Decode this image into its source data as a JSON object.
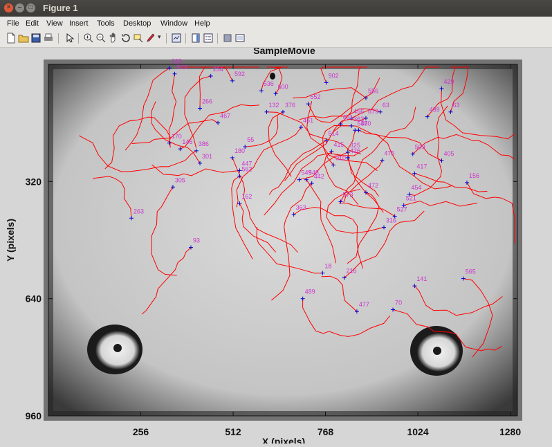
{
  "window": {
    "title": "Figure 1",
    "close_glyph": "×",
    "min_glyph": "–",
    "max_glyph": "□"
  },
  "menu": [
    "File",
    "Edit",
    "View",
    "Insert",
    "Tools",
    "Desktop",
    "Window",
    "Help"
  ],
  "toolbar_icons": [
    "new-figure-icon",
    "open-file-icon",
    "save-icon",
    "print-icon",
    "pointer-icon",
    "zoom-in-icon",
    "zoom-out-icon",
    "pan-icon",
    "rotate-3d-icon",
    "data-cursor-icon",
    "brush-icon",
    "link-plot-icon",
    "colorbar-icon",
    "legend-icon",
    "hide-plot-tools-icon",
    "show-plot-tools-icon"
  ],
  "chart_data": {
    "type": "scatter",
    "title": "SampleMovie",
    "xlabel": "X (pixels)",
    "ylabel": "Y (pixels)",
    "xlim": [
      0,
      1300
    ],
    "ylim": [
      960,
      0
    ],
    "xticks": [
      "256",
      "512",
      "768",
      "1024",
      "1280"
    ],
    "yticks": [
      "320",
      "640",
      "960"
    ],
    "track_color": "#ff0000",
    "marker_color": "#0000cc",
    "label_color": "#cc33cc",
    "detections": [
      {
        "id": "328",
        "x": 335,
        "y": 10
      },
      {
        "id": "543",
        "x": 350,
        "y": 26
      },
      {
        "id": "254",
        "x": 450,
        "y": 32
      },
      {
        "id": "592",
        "x": 510,
        "y": 45
      },
      {
        "id": "902",
        "x": 770,
        "y": 50
      },
      {
        "id": "429",
        "x": 1090,
        "y": 66
      },
      {
        "id": "536",
        "x": 590,
        "y": 72
      },
      {
        "id": "600",
        "x": 630,
        "y": 80
      },
      {
        "id": "556",
        "x": 880,
        "y": 92
      },
      {
        "id": "552",
        "x": 720,
        "y": 108
      },
      {
        "id": "266",
        "x": 420,
        "y": 120
      },
      {
        "id": "132",
        "x": 605,
        "y": 130
      },
      {
        "id": "376",
        "x": 650,
        "y": 130
      },
      {
        "id": "63",
        "x": 1115,
        "y": 130
      },
      {
        "id": "63",
        "x": 920,
        "y": 130
      },
      {
        "id": "439",
        "x": 1050,
        "y": 143
      },
      {
        "id": "456",
        "x": 840,
        "y": 147
      },
      {
        "id": "879",
        "x": 880,
        "y": 147
      },
      {
        "id": "467",
        "x": 470,
        "y": 160
      },
      {
        "id": "421",
        "x": 810,
        "y": 163
      },
      {
        "id": "362",
        "x": 840,
        "y": 168
      },
      {
        "id": "461",
        "x": 700,
        "y": 172
      },
      {
        "id": "548",
        "x": 850,
        "y": 180
      },
      {
        "id": "370",
        "x": 860,
        "y": 180
      },
      {
        "id": "514",
        "x": 770,
        "y": 208
      },
      {
        "id": "170",
        "x": 335,
        "y": 215
      },
      {
        "id": "146",
        "x": 365,
        "y": 231
      },
      {
        "id": "386",
        "x": 410,
        "y": 236
      },
      {
        "id": "55",
        "x": 545,
        "y": 225
      },
      {
        "id": "415",
        "x": 785,
        "y": 238
      },
      {
        "id": "325",
        "x": 830,
        "y": 240
      },
      {
        "id": "509",
        "x": 1010,
        "y": 245
      },
      {
        "id": "180",
        "x": 510,
        "y": 255
      },
      {
        "id": "426",
        "x": 830,
        "y": 255
      },
      {
        "id": "475",
        "x": 925,
        "y": 262
      },
      {
        "id": "405",
        "x": 1090,
        "y": 263
      },
      {
        "id": "301",
        "x": 420,
        "y": 270
      },
      {
        "id": "910",
        "x": 790,
        "y": 275
      },
      {
        "id": "447",
        "x": 530,
        "y": 290
      },
      {
        "id": "417",
        "x": 1015,
        "y": 298
      },
      {
        "id": "562",
        "x": 530,
        "y": 305
      },
      {
        "id": "549",
        "x": 695,
        "y": 315
      },
      {
        "id": "548",
        "x": 715,
        "y": 315
      },
      {
        "id": "156",
        "x": 1160,
        "y": 323
      },
      {
        "id": "442",
        "x": 730,
        "y": 325
      },
      {
        "id": "305",
        "x": 345,
        "y": 335
      },
      {
        "id": "472",
        "x": 880,
        "y": 350
      },
      {
        "id": "454",
        "x": 1000,
        "y": 355
      },
      {
        "id": "573",
        "x": 810,
        "y": 375
      },
      {
        "id": "162",
        "x": 530,
        "y": 380
      },
      {
        "id": "521",
        "x": 985,
        "y": 385
      },
      {
        "id": "363",
        "x": 680,
        "y": 410
      },
      {
        "id": "527",
        "x": 960,
        "y": 415
      },
      {
        "id": "263",
        "x": 230,
        "y": 420
      },
      {
        "id": "316",
        "x": 930,
        "y": 445
      },
      {
        "id": "93",
        "x": 395,
        "y": 500
      },
      {
        "id": "18",
        "x": 760,
        "y": 570
      },
      {
        "id": "216",
        "x": 820,
        "y": 583
      },
      {
        "id": "565",
        "x": 1150,
        "y": 585
      },
      {
        "id": "141",
        "x": 1015,
        "y": 605
      },
      {
        "id": "489",
        "x": 705,
        "y": 640
      },
      {
        "id": "477",
        "x": 855,
        "y": 675
      },
      {
        "id": "70",
        "x": 955,
        "y": 670
      }
    ]
  }
}
